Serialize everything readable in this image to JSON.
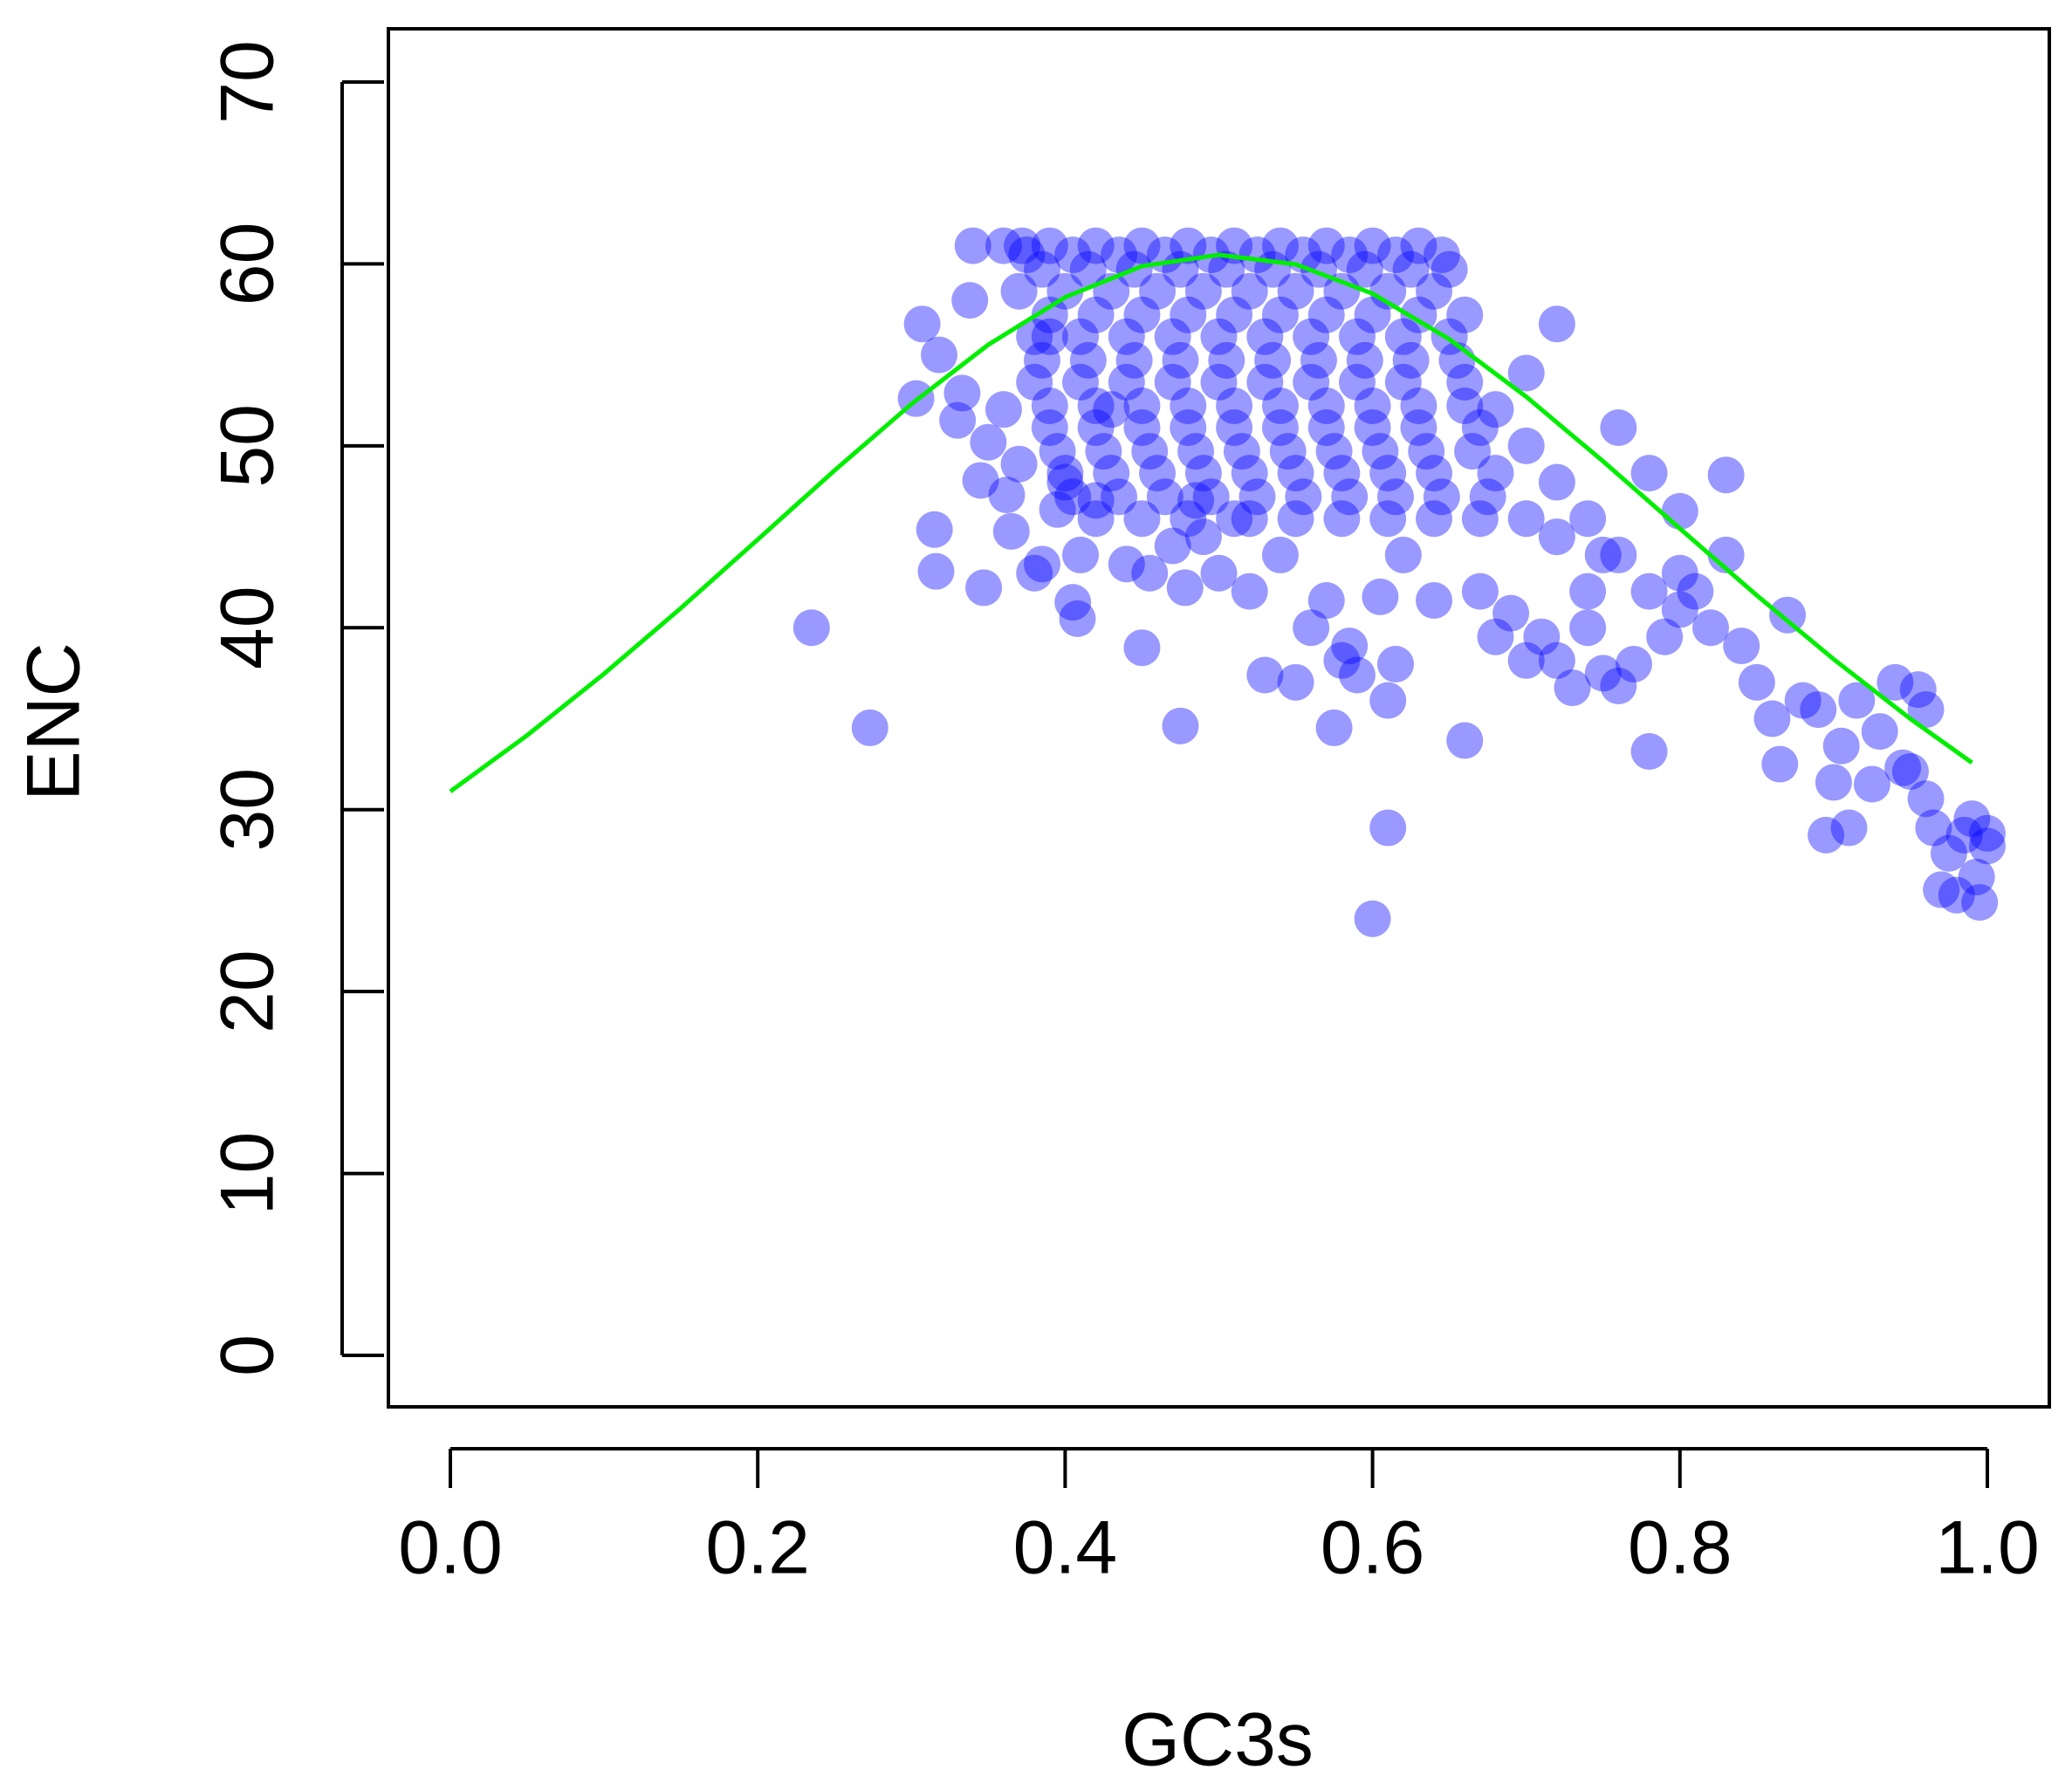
{
  "chart_data": {
    "type": "scatter",
    "x_label": "GC3s",
    "y_label": "ENC",
    "xlim": [
      0.0,
      1.0
    ],
    "xticks": [
      {
        "value": 0,
        "label": "0.0"
      },
      0.2,
      0.4,
      0.6,
      0.8,
      {
        "value": 1,
        "label": "1.0"
      }
    ],
    "ylim": [
      0,
      70
    ],
    "yticks": [
      0,
      10,
      20,
      30,
      40,
      50,
      60,
      70
    ],
    "series": [
      {
        "type": "scatter",
        "color": "#0000ff",
        "opacity": 0.4,
        "x": [
          0.235,
          0.273,
          0.303,
          0.307,
          0.315,
          0.316,
          0.318,
          0.33,
          0.333,
          0.338,
          0.34,
          0.345,
          0.347,
          0.35,
          0.36,
          0.362,
          0.365,
          0.37,
          0.372,
          0.38,
          0.385,
          0.39,
          0.395,
          0.4,
          0.405,
          0.408,
          0.41,
          0.42,
          0.43,
          0.44,
          0.45,
          0.455,
          0.47,
          0.475,
          0.478,
          0.485,
          0.49,
          0.5,
          0.51,
          0.52,
          0.53,
          0.54,
          0.55,
          0.56,
          0.57,
          0.575,
          0.58,
          0.585,
          0.59,
          0.6,
          0.605,
          0.61,
          0.61,
          0.615,
          0.62,
          0.64,
          0.66,
          0.67,
          0.68,
          0.69,
          0.7,
          0.71,
          0.72,
          0.72,
          0.73,
          0.74,
          0.75,
          0.76,
          0.77,
          0.78,
          0.78,
          0.76,
          0.8,
          0.79,
          0.81,
          0.82,
          0.83,
          0.84,
          0.85,
          0.86,
          0.865,
          0.87,
          0.88,
          0.89,
          0.895,
          0.9,
          0.905,
          0.91,
          0.915,
          0.925,
          0.93,
          0.94,
          0.945,
          0.95,
          0.955,
          0.96,
          0.96,
          0.965,
          0.97,
          0.975,
          0.98,
          0.985,
          0.99,
          0.993,
          0.995,
          1.0,
          1.0,
          0.83,
          0.8,
          0.75,
          0.36,
          0.39,
          0.42,
          0.45,
          0.48,
          0.51,
          0.54,
          0.57,
          0.6,
          0.63,
          0.37,
          0.4,
          0.43,
          0.46,
          0.49,
          0.52,
          0.55,
          0.58,
          0.61,
          0.64,
          0.38,
          0.41,
          0.44,
          0.47,
          0.5,
          0.53,
          0.56,
          0.59,
          0.62,
          0.65,
          0.38,
          0.41,
          0.44,
          0.47,
          0.5,
          0.53,
          0.56,
          0.59,
          0.62,
          0.66,
          0.39,
          0.42,
          0.45,
          0.48,
          0.51,
          0.54,
          0.57,
          0.6,
          0.63,
          0.67,
          0.4,
          0.43,
          0.46,
          0.49,
          0.52,
          0.55,
          0.58,
          0.61,
          0.64,
          0.68,
          0.42,
          0.45,
          0.48,
          0.52,
          0.55,
          0.58,
          0.61,
          0.64,
          0.67,
          0.7,
          0.68,
          0.7,
          0.72,
          0.74,
          0.76,
          0.7,
          0.72,
          0.74,
          0.78,
          0.8,
          0.385,
          0.415,
          0.445,
          0.475,
          0.505,
          0.535,
          0.565,
          0.595,
          0.625,
          0.65,
          0.385,
          0.415,
          0.445,
          0.475,
          0.505,
          0.535,
          0.565,
          0.595,
          0.625,
          0.655,
          0.395,
          0.425,
          0.455,
          0.485,
          0.515,
          0.545,
          0.575,
          0.605,
          0.635,
          0.665,
          0.405,
          0.435,
          0.465,
          0.495,
          0.525,
          0.555,
          0.585,
          0.615,
          0.645,
          0.675,
          0.39,
          0.42,
          0.45,
          0.48,
          0.51,
          0.54,
          0.57,
          0.6,
          0.63,
          0.66,
          0.39,
          0.42,
          0.45,
          0.48,
          0.51,
          0.54,
          0.57,
          0.6,
          0.63,
          0.66,
          0.375,
          0.405,
          0.435,
          0.465,
          0.495,
          0.525,
          0.555,
          0.585,
          0.615,
          0.645
        ],
        "values": [
          40,
          34.5,
          52.6,
          56.7,
          45.4,
          43.1,
          55,
          51.4,
          52.9,
          58,
          61,
          48.1,
          42.2,
          50.2,
          52,
          47.3,
          45.3,
          49,
          61,
          43,
          43.5,
          56,
          46.5,
          48,
          41.4,
          40.5,
          44,
          47,
          52,
          43.5,
          38.9,
          43,
          44.5,
          34.6,
          42.2,
          47,
          45,
          43,
          46,
          42,
          37.4,
          44,
          37,
          40,
          41.5,
          34.5,
          38.2,
          39,
          37.4,
          24,
          41.7,
          36,
          29,
          38,
          44,
          41.5,
          33.8,
          42,
          39.5,
          40.8,
          38.2,
          39.5,
          38.2,
          56.7,
          36.7,
          40,
          37.5,
          36.8,
          38,
          33.2,
          48.5,
          51,
          46.4,
          39.5,
          42,
          40,
          48.4,
          39,
          37,
          35,
          32.5,
          40.7,
          36,
          35.5,
          28.6,
          31.5,
          33.5,
          29,
          36,
          31.4,
          34.3,
          37,
          32.3,
          32.1,
          36.6,
          35.5,
          30.6,
          29,
          25.6,
          27.6,
          25.3,
          28.6,
          29.5,
          26.3,
          24.9,
          28.7,
          28,
          44,
          43,
          44,
          61,
          61,
          61,
          61,
          61,
          61,
          61,
          61,
          61,
          61,
          58.5,
          58.5,
          58.5,
          58.5,
          58.5,
          58.5,
          58.5,
          58.5,
          58.5,
          58.5,
          56,
          56,
          56,
          56,
          56,
          56,
          56,
          56,
          56,
          56,
          53.5,
          53.5,
          53.5,
          53.5,
          53.5,
          53.5,
          53.5,
          53.5,
          53.5,
          53.5,
          51,
          51,
          51,
          51,
          51,
          51,
          51,
          51,
          51,
          51,
          48.5,
          48.5,
          48.5,
          48.5,
          48.5,
          48.5,
          48.5,
          48.5,
          48.5,
          48.5,
          46,
          46,
          46,
          46,
          46,
          46,
          46,
          46,
          46,
          46,
          52,
          50,
          48,
          46,
          44,
          54,
          45,
          42,
          42,
          41,
          59.7,
          59.7,
          59.7,
          59.7,
          59.7,
          59.7,
          59.7,
          59.7,
          59.7,
          59.7,
          54.7,
          54.7,
          54.7,
          54.7,
          54.7,
          54.7,
          54.7,
          54.7,
          54.7,
          54.7,
          49.7,
          49.7,
          49.7,
          49.7,
          49.7,
          49.7,
          49.7,
          49.7,
          49.7,
          49.7,
          47.2,
          47.2,
          47.2,
          47.2,
          47.2,
          47.2,
          47.2,
          47.2,
          47.2,
          47.2,
          57.2,
          57.2,
          57.2,
          57.2,
          57.2,
          57.2,
          57.2,
          57.2,
          57.2,
          57.2,
          52.2,
          52.2,
          52.2,
          52.2,
          52.2,
          52.2,
          52.2,
          52.2,
          52.2,
          52.2,
          60.5,
          60.5,
          60.5,
          60.5,
          60.5,
          60.5,
          60.5,
          60.5,
          60.5,
          60.5
        ]
      },
      {
        "type": "line",
        "color": "#00ee00",
        "x": [
          0,
          0.05,
          0.1,
          0.15,
          0.2,
          0.25,
          0.3,
          0.35,
          0.4,
          0.45,
          0.5,
          0.55,
          0.6,
          0.65,
          0.7,
          0.75,
          0.8,
          0.85,
          0.9,
          0.95,
          0.99
        ],
        "values": [
          31,
          34.09,
          37.47,
          41.08,
          44.85,
          48.65,
          52.3,
          55.56,
          58.17,
          59.88,
          60.5,
          59.98,
          58.37,
          55.86,
          52.7,
          49.15,
          45.45,
          41.78,
          38.27,
          34.99,
          32.58
        ]
      }
    ]
  }
}
